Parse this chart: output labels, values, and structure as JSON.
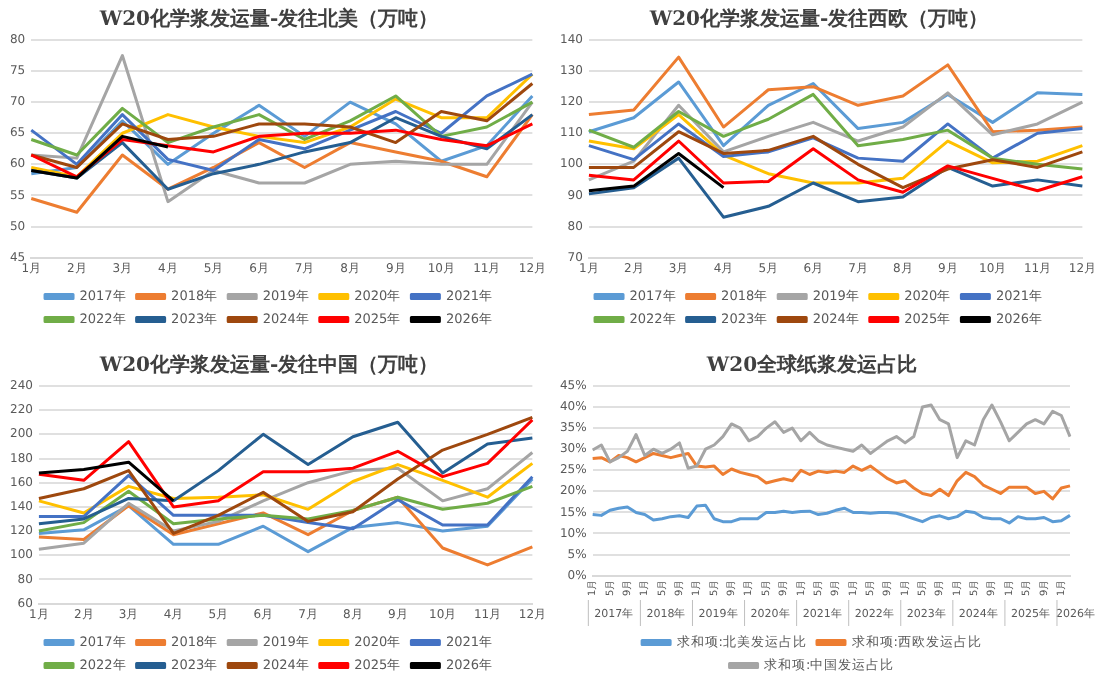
{
  "chart_data": [
    {
      "type": "line",
      "title": "W20化学浆发运量-发往北美（万吨）",
      "categories": [
        "1月",
        "2月",
        "3月",
        "4月",
        "5月",
        "6月",
        "7月",
        "8月",
        "9月",
        "10月",
        "11月",
        "12月"
      ],
      "ylim": [
        45,
        80
      ],
      "yticks": [
        45,
        50,
        55,
        60,
        65,
        70,
        75,
        80
      ],
      "grid": "y",
      "legend": "bottom",
      "marker": "none",
      "series": [
        {
          "name": "2017年",
          "color": "#5b9bd5",
          "values": [
            58.5,
            59.5,
            67,
            60,
            65,
            69.5,
            64.5,
            70,
            66.5,
            60.5,
            63,
            71
          ]
        },
        {
          "name": "2018年",
          "color": "#ed7d31",
          "values": [
            54.5,
            52.3,
            61.5,
            56,
            59.5,
            63.5,
            59.5,
            63.5,
            62,
            60.5,
            58,
            68
          ]
        },
        {
          "name": "2019年",
          "color": "#a5a5a5",
          "values": [
            61.5,
            61,
            77.5,
            54,
            59,
            57,
            57,
            60,
            60.5,
            60,
            60,
            70
          ]
        },
        {
          "name": "2020年",
          "color": "#ffc000",
          "values": [
            59.5,
            58,
            65,
            68,
            66,
            64.5,
            63.5,
            66,
            70.5,
            67.5,
            67.5,
            74.5
          ]
        },
        {
          "name": "2021年",
          "color": "#4472c4",
          "values": [
            65.5,
            60,
            68,
            60.8,
            59,
            64,
            62.5,
            65.5,
            68.5,
            65,
            71,
            74.5
          ]
        },
        {
          "name": "2022年",
          "color": "#70ad47",
          "values": [
            64,
            61.5,
            69,
            63.5,
            66,
            68,
            64,
            67,
            71,
            64.5,
            66,
            70
          ]
        },
        {
          "name": "2023年",
          "color": "#255e91",
          "values": [
            59,
            57.8,
            63.5,
            56,
            58.5,
            60,
            62,
            63.5,
            67.5,
            64.5,
            62.5,
            68
          ]
        },
        {
          "name": "2024年",
          "color": "#9e480e",
          "values": [
            61.5,
            59.5,
            66.5,
            64,
            64.5,
            66.5,
            66.5,
            66,
            63.5,
            68.5,
            67,
            73
          ]
        },
        {
          "name": "2025年",
          "color": "#ff0000",
          "values": [
            61.5,
            58,
            64,
            63,
            62,
            64.5,
            65,
            65,
            65.5,
            64,
            63,
            66.5
          ]
        },
        {
          "name": "2026年",
          "color": "#000000",
          "values": [
            59,
            57.8,
            64.5,
            62.8,
            null,
            null,
            null,
            null,
            null,
            null,
            null,
            null
          ]
        }
      ]
    },
    {
      "type": "line",
      "title": "W20化学浆发运量-发往西欧（万吨）",
      "categories": [
        "1月",
        "2月",
        "3月",
        "4月",
        "5月",
        "6月",
        "7月",
        "8月",
        "9月",
        "10月",
        "11月",
        "12月"
      ],
      "ylim": [
        70,
        140
      ],
      "yticks": [
        70,
        80,
        90,
        100,
        110,
        120,
        130,
        140
      ],
      "grid": "y",
      "legend": "bottom",
      "marker": "none",
      "series": [
        {
          "name": "2017年",
          "color": "#5b9bd5",
          "values": [
            110.5,
            115,
            126.5,
            106,
            119,
            126,
            111.5,
            113.5,
            122.5,
            113.5,
            123,
            122.5
          ]
        },
        {
          "name": "2018年",
          "color": "#ed7d31",
          "values": [
            116,
            117.5,
            134.5,
            112,
            124,
            125,
            119,
            122,
            132,
            110.5,
            111,
            112
          ]
        },
        {
          "name": "2019年",
          "color": "#a5a5a5",
          "values": [
            95,
            101,
            119,
            104,
            109,
            113.5,
            107.5,
            112,
            123,
            109.5,
            113,
            120
          ]
        },
        {
          "name": "2020年",
          "color": "#ffc000",
          "values": [
            107.5,
            105,
            116,
            103,
            97,
            94,
            94,
            95.5,
            107.5,
            100.5,
            101,
            106
          ]
        },
        {
          "name": "2021年",
          "color": "#4472c4",
          "values": [
            106,
            101.5,
            113,
            102.5,
            104,
            108.5,
            102,
            101,
            113,
            102,
            110,
            111.5
          ]
        },
        {
          "name": "2022年",
          "color": "#70ad47",
          "values": [
            111,
            105.5,
            117,
            109,
            114.5,
            122.5,
            106,
            108,
            111,
            102,
            100,
            98.5
          ]
        },
        {
          "name": "2023年",
          "color": "#255e91",
          "values": [
            90.5,
            92.5,
            102,
            83,
            86.5,
            94,
            88,
            89.5,
            99,
            93,
            95,
            93
          ]
        },
        {
          "name": "2024年",
          "color": "#9e480e",
          "values": [
            99,
            99,
            110.5,
            103.5,
            104.5,
            109,
            100,
            92.5,
            98.5,
            101.5,
            99,
            104
          ]
        },
        {
          "name": "2025年",
          "color": "#ff0000",
          "values": [
            96.5,
            95,
            107.5,
            94,
            94.5,
            105,
            95,
            91,
            99.5,
            95.5,
            91.5,
            96
          ]
        },
        {
          "name": "2026年",
          "color": "#000000",
          "values": [
            91.5,
            93,
            103.5,
            92.5,
            null,
            null,
            null,
            null,
            null,
            null,
            null,
            null
          ]
        }
      ]
    },
    {
      "type": "line",
      "title": "W20化学浆发运量-发往中国（万吨）",
      "categories": [
        "1月",
        "2月",
        "3月",
        "4月",
        "5月",
        "6月",
        "7月",
        "8月",
        "9月",
        "10月",
        "11月",
        "12月"
      ],
      "ylim": [
        60,
        240
      ],
      "yticks": [
        60,
        80,
        100,
        120,
        140,
        160,
        180,
        200,
        220,
        240
      ],
      "grid": "y",
      "legend": "bottom",
      "marker": "none",
      "series": [
        {
          "name": "2017年",
          "color": "#5b9bd5",
          "values": [
            118,
            121,
            141,
            109,
            109,
            124,
            103,
            123,
            127,
            120,
            124,
            163
          ]
        },
        {
          "name": "2018年",
          "color": "#ed7d31",
          "values": [
            115,
            113,
            141,
            117,
            126,
            135,
            117,
            137,
            148,
            106,
            92,
            107
          ]
        },
        {
          "name": "2019年",
          "color": "#a5a5a5",
          "values": [
            105,
            110,
            143,
            120,
            128,
            145,
            160,
            170,
            172,
            145,
            155,
            185
          ]
        },
        {
          "name": "2020年",
          "color": "#ffc000",
          "values": [
            145,
            135,
            157,
            147,
            148,
            150,
            138,
            161,
            175,
            162,
            148,
            176
          ]
        },
        {
          "name": "2021年",
          "color": "#4472c4",
          "values": [
            132,
            132,
            166,
            133,
            133,
            133,
            127,
            122,
            146,
            125,
            125,
            165
          ]
        },
        {
          "name": "2022年",
          "color": "#70ad47",
          "values": [
            120,
            127,
            153,
            126,
            130,
            133,
            130,
            137,
            148,
            138,
            143,
            157
          ]
        },
        {
          "name": "2023年",
          "color": "#255e91",
          "values": [
            126,
            130,
            147,
            145,
            170,
            200,
            175,
            198,
            210,
            168,
            192,
            197
          ]
        },
        {
          "name": "2024年",
          "color": "#9e480e",
          "values": [
            147,
            155,
            170,
            118,
            133,
            152,
            128,
            136,
            163,
            187,
            200,
            214
          ]
        },
        {
          "name": "2025年",
          "color": "#ff0000",
          "values": [
            167,
            162,
            194,
            140,
            145,
            169,
            169,
            172,
            186,
            165,
            176,
            212
          ]
        },
        {
          "name": "2026年",
          "color": "#000000",
          "values": [
            168,
            171,
            177,
            145,
            null,
            null,
            null,
            null,
            null,
            null,
            null,
            null
          ]
        }
      ]
    },
    {
      "type": "line",
      "title": "W20全球纸浆发运占比",
      "categories": [
        "1月",
        null,
        "5月",
        null,
        "9月",
        null,
        "1月",
        null,
        "5月",
        null,
        "9月",
        null,
        "1月",
        null,
        "5月",
        null,
        "9月",
        null,
        "1月",
        null,
        "5月",
        null,
        "9月",
        null,
        "1月",
        null,
        "5月",
        null,
        "9月",
        null,
        "1月",
        null,
        "5月",
        null,
        "9月",
        null,
        "1月",
        null,
        "5月",
        null,
        "9月",
        null,
        "1月",
        null,
        "5月",
        null,
        "9月",
        null,
        "1月",
        null,
        "5月",
        null,
        "9月",
        null,
        "1月",
        null
      ],
      "annotations": [
        "2017年",
        "2018年",
        "2019年",
        "2020年",
        "2021年",
        "2022年",
        "2023年",
        "2024年",
        "2025年",
        "2026年"
      ],
      "ylim": [
        0,
        45
      ],
      "yticks": [
        {
          "value": 0,
          "label": "0%"
        },
        {
          "value": 5,
          "label": "5%"
        },
        {
          "value": 10,
          "label": "10%"
        },
        {
          "value": 15,
          "label": "15%"
        },
        {
          "value": 20,
          "label": "20%"
        },
        {
          "value": 25,
          "label": "25%"
        },
        {
          "value": 30,
          "label": "30%"
        },
        {
          "value": 35,
          "label": "35%"
        },
        {
          "value": 40,
          "label": "40%"
        },
        {
          "value": 45,
          "label": "45%"
        }
      ],
      "grid": "y",
      "legend": "bottom",
      "marker": "none",
      "series": [
        {
          "name": "求和项:北美发运占比",
          "color": "#5b9bd5",
          "values": [
            14.5,
            14.3,
            15.5,
            16,
            16.3,
            15,
            14.5,
            13.2,
            13.5,
            14,
            14.2,
            13.8,
            16.5,
            16.7,
            13.5,
            12.8,
            12.8,
            13.5,
            13.5,
            13.5,
            15,
            15,
            15.3,
            15,
            15.2,
            15.3,
            14.5,
            14.8,
            15.5,
            16,
            15,
            15,
            14.8,
            15,
            15,
            14.8,
            14.2,
            13.5,
            12.8,
            13.8,
            14.2,
            13.5,
            14,
            15.3,
            15,
            13.8,
            13.5,
            13.5,
            12.5,
            14,
            13.5,
            13.5,
            13.8,
            12.8,
            13,
            14.3
          ]
        },
        {
          "name": "求和项:西欧发运占比",
          "color": "#ed7d31",
          "values": [
            27.8,
            28,
            27,
            28.5,
            28,
            27,
            28,
            29,
            28.5,
            28,
            28.5,
            29,
            26,
            25.8,
            26,
            24,
            25.3,
            24.5,
            24,
            23.5,
            22,
            22.5,
            23,
            22.5,
            25,
            24,
            24.8,
            24.5,
            24.8,
            24.5,
            26,
            25,
            26,
            24.5,
            23,
            22,
            22.5,
            20.8,
            19.5,
            19,
            20.5,
            19,
            22.5,
            24.5,
            23.5,
            21.5,
            20.5,
            19.5,
            21,
            21,
            21,
            19.5,
            20,
            18.2,
            20.8,
            21.3
          ]
        },
        {
          "name": "求和项:中国发运占比",
          "color": "#a5a5a5",
          "values": [
            29.8,
            31,
            27,
            28,
            29.5,
            33.5,
            28.5,
            30,
            29,
            30,
            31.5,
            25.5,
            26,
            30,
            31,
            33,
            36,
            35,
            32,
            33,
            35,
            36.5,
            34,
            35,
            32,
            34,
            32,
            31,
            30.5,
            30,
            29.5,
            31,
            29,
            30.5,
            32,
            33,
            31.5,
            33,
            40,
            40.5,
            37,
            36,
            28,
            32,
            31,
            37,
            40.5,
            36.5,
            32,
            34,
            36,
            37,
            36,
            39,
            38,
            33
          ]
        }
      ]
    }
  ]
}
